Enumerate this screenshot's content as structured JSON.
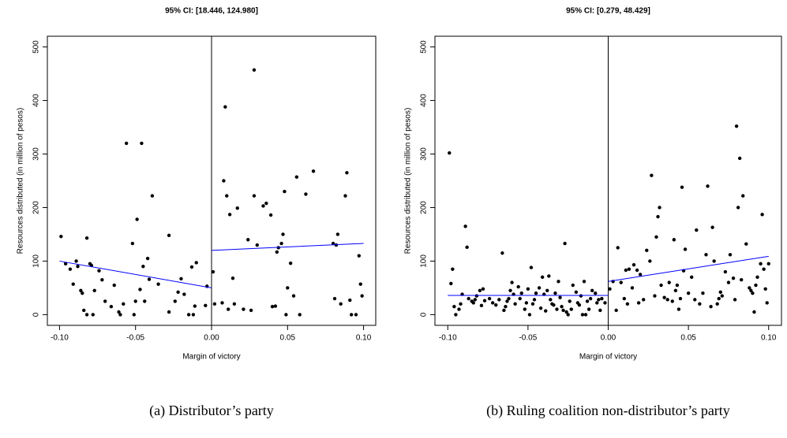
{
  "chart_data": [
    {
      "type": "scatter",
      "title": "95% CI: [18.446, 124.980]",
      "xlabel": "Margin of victory",
      "ylabel": "Resources distributed (in million of pesos)",
      "caption": "(a)  Distributor’s party",
      "x": [
        -0.099,
        -0.096,
        -0.093,
        -0.091,
        -0.089,
        -0.088,
        -0.086,
        -0.085,
        -0.084,
        -0.082,
        -0.082,
        -0.08,
        -0.079,
        -0.078,
        -0.077,
        -0.074,
        -0.072,
        -0.07,
        -0.066,
        -0.064,
        -0.061,
        -0.06,
        -0.058,
        -0.056,
        -0.052,
        -0.051,
        -0.05,
        -0.049,
        -0.047,
        -0.046,
        -0.045,
        -0.044,
        -0.042,
        -0.041,
        -0.039,
        -0.035,
        -0.028,
        -0.028,
        -0.024,
        -0.022,
        -0.02,
        -0.018,
        -0.015,
        -0.013,
        -0.012,
        -0.011,
        -0.01,
        -0.004,
        -0.003,
        0.001,
        0.002,
        0.007,
        0.008,
        0.009,
        0.01,
        0.011,
        0.012,
        0.014,
        0.015,
        0.017,
        0.021,
        0.024,
        0.026,
        0.028,
        0.028,
        0.03,
        0.034,
        0.036,
        0.039,
        0.04,
        0.042,
        0.043,
        0.044,
        0.046,
        0.047,
        0.048,
        0.049,
        0.05,
        0.052,
        0.054,
        0.056,
        0.058,
        0.062,
        0.067,
        0.08,
        0.081,
        0.082,
        0.083,
        0.085,
        0.088,
        0.089,
        0.091,
        0.092,
        0.095,
        0.097,
        0.098,
        0.099
      ],
      "values": [
        146,
        95,
        85,
        57,
        100,
        90,
        45,
        40,
        8,
        0,
        143,
        95,
        92,
        0,
        45,
        82,
        65,
        25,
        15,
        55,
        5,
        0,
        20,
        320,
        133,
        0,
        25,
        178,
        47,
        320,
        90,
        25,
        105,
        66,
        222,
        57,
        5,
        148,
        25,
        42,
        67,
        38,
        0,
        89,
        0,
        16,
        97,
        17,
        53,
        80,
        20,
        22,
        250,
        388,
        222,
        10,
        187,
        68,
        20,
        199,
        10,
        140,
        8,
        457,
        222,
        130,
        203,
        208,
        186,
        15,
        16,
        117,
        125,
        133,
        150,
        230,
        0,
        50,
        96,
        35,
        257,
        0,
        225,
        268,
        133,
        30,
        130,
        150,
        20,
        222,
        265,
        27,
        0,
        0,
        110,
        57,
        35
      ],
      "color": "#000000",
      "fit_lines": [
        {
          "x": [
            -0.1,
            0
          ],
          "values": [
            100,
            50
          ],
          "color": "#0000ff"
        },
        {
          "x": [
            0,
            0.1
          ],
          "values": [
            120,
            133
          ],
          "color": "#0000ff"
        }
      ],
      "vline": 0,
      "xlim": [
        -0.108,
        0.108
      ],
      "ylim": [
        -20,
        520
      ],
      "xticks": [
        {
          "value": -0.1,
          "label": "-0.10"
        },
        {
          "value": -0.05,
          "label": "-0.05"
        },
        {
          "value": 0,
          "label": "0.00"
        },
        {
          "value": 0.05,
          "label": "0.05"
        },
        {
          "value": 0.1,
          "label": "0.10"
        }
      ],
      "yticks": [
        0,
        100,
        200,
        300,
        400,
        500
      ]
    },
    {
      "type": "scatter",
      "title": "95% CI: [0.279, 48.429]",
      "xlabel": "Margin of victory",
      "ylabel": "Resources distributed (in million of pesos)",
      "caption": "(b)  Ruling coalition non-distributor’s party",
      "x": [
        -0.099,
        -0.098,
        -0.097,
        -0.096,
        -0.095,
        -0.093,
        -0.092,
        -0.091,
        -0.089,
        -0.088,
        -0.087,
        -0.085,
        -0.084,
        -0.083,
        -0.082,
        -0.08,
        -0.079,
        -0.078,
        -0.077,
        -0.074,
        -0.072,
        -0.07,
        -0.068,
        -0.066,
        -0.065,
        -0.064,
        -0.063,
        -0.062,
        -0.061,
        -0.06,
        -0.059,
        -0.058,
        -0.056,
        -0.055,
        -0.054,
        -0.052,
        -0.051,
        -0.05,
        -0.049,
        -0.048,
        -0.047,
        -0.046,
        -0.045,
        -0.043,
        -0.042,
        -0.041,
        -0.04,
        -0.039,
        -0.038,
        -0.037,
        -0.036,
        -0.035,
        -0.034,
        -0.033,
        -0.032,
        -0.031,
        -0.03,
        -0.029,
        -0.028,
        -0.027,
        -0.026,
        -0.025,
        -0.024,
        -0.023,
        -0.022,
        -0.02,
        -0.019,
        -0.018,
        -0.017,
        -0.016,
        -0.015,
        -0.014,
        -0.013,
        -0.012,
        -0.011,
        -0.01,
        -0.008,
        -0.007,
        -0.006,
        -0.005,
        -0.004,
        -0.002,
        0.001,
        0.003,
        0.005,
        0.006,
        0.008,
        0.01,
        0.011,
        0.012,
        0.013,
        0.015,
        0.016,
        0.018,
        0.019,
        0.02,
        0.022,
        0.024,
        0.026,
        0.027,
        0.029,
        0.03,
        0.031,
        0.032,
        0.033,
        0.035,
        0.037,
        0.038,
        0.04,
        0.041,
        0.042,
        0.043,
        0.044,
        0.045,
        0.046,
        0.047,
        0.048,
        0.05,
        0.052,
        0.054,
        0.055,
        0.057,
        0.059,
        0.061,
        0.062,
        0.064,
        0.065,
        0.066,
        0.068,
        0.069,
        0.07,
        0.071,
        0.073,
        0.075,
        0.076,
        0.078,
        0.079,
        0.08,
        0.081,
        0.082,
        0.083,
        0.084,
        0.086,
        0.088,
        0.089,
        0.09,
        0.091,
        0.092,
        0.093,
        0.095,
        0.096,
        0.097,
        0.098,
        0.099,
        0.1
      ],
      "values": [
        302,
        58,
        85,
        15,
        0,
        10,
        20,
        38,
        165,
        126,
        30,
        25,
        22,
        28,
        35,
        45,
        17,
        48,
        26,
        30,
        22,
        18,
        28,
        115,
        8,
        15,
        25,
        30,
        45,
        60,
        38,
        20,
        52,
        30,
        40,
        10,
        22,
        48,
        0,
        88,
        20,
        28,
        40,
        50,
        12,
        70,
        38,
        7,
        45,
        72,
        28,
        20,
        18,
        40,
        10,
        62,
        32,
        15,
        8,
        133,
        5,
        0,
        25,
        10,
        55,
        42,
        22,
        18,
        35,
        0,
        62,
        0,
        25,
        10,
        30,
        45,
        40,
        22,
        28,
        8,
        30,
        22,
        48,
        62,
        8,
        125,
        60,
        30,
        83,
        20,
        85,
        50,
        93,
        83,
        22,
        75,
        28,
        120,
        100,
        260,
        35,
        145,
        183,
        200,
        55,
        32,
        28,
        60,
        25,
        140,
        45,
        55,
        10,
        30,
        238,
        82,
        122,
        40,
        70,
        28,
        158,
        20,
        40,
        112,
        240,
        15,
        163,
        100,
        20,
        30,
        42,
        35,
        80,
        60,
        112,
        68,
        28,
        352,
        200,
        292,
        65,
        222,
        132,
        50,
        45,
        40,
        5,
        55,
        70,
        95,
        187,
        85,
        48,
        22,
        95
      ],
      "color": "#000000",
      "fit_lines": [
        {
          "x": [
            -0.1,
            0
          ],
          "values": [
            36,
            36
          ],
          "color": "#0000ff"
        },
        {
          "x": [
            0,
            0.1
          ],
          "values": [
            62,
            109
          ],
          "color": "#0000ff"
        }
      ],
      "vline": 0,
      "xlim": [
        -0.108,
        0.108
      ],
      "ylim": [
        -20,
        520
      ],
      "xticks": [
        {
          "value": -0.1,
          "label": "-0.10"
        },
        {
          "value": -0.05,
          "label": "-0.05"
        },
        {
          "value": 0,
          "label": "0.00"
        },
        {
          "value": 0.05,
          "label": "0.05"
        },
        {
          "value": 0.1,
          "label": "0.10"
        }
      ],
      "yticks": [
        0,
        100,
        200,
        300,
        400,
        500
      ]
    }
  ]
}
